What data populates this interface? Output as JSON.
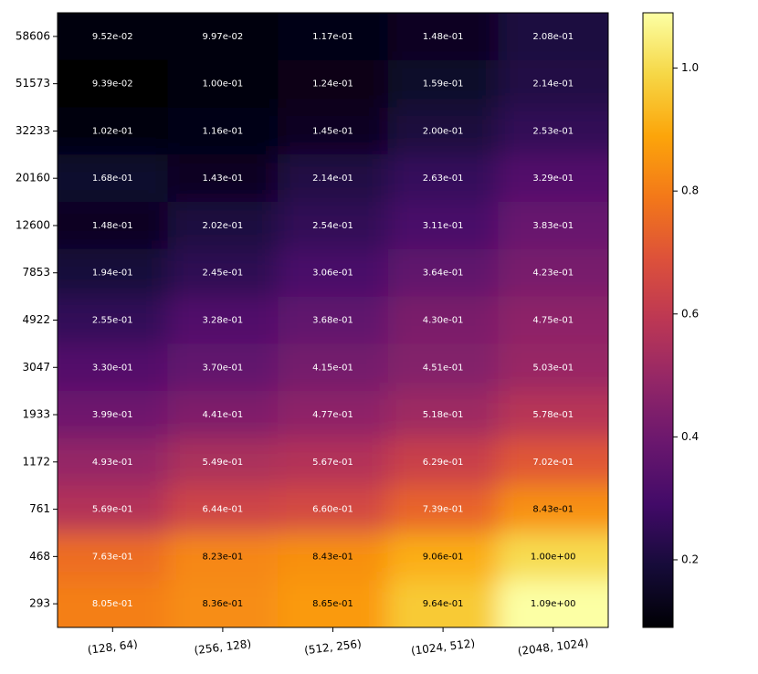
{
  "chart_data": {
    "type": "heatmap",
    "title": "",
    "xlabel": "",
    "ylabel": "",
    "x_categories": [
      "(128, 64)",
      "(256, 128)",
      "(512, 256)",
      "(1024, 512)",
      "(2048, 1024)"
    ],
    "y_categories": [
      "58606",
      "51573",
      "32233",
      "20160",
      "12600",
      "7853",
      "4922",
      "3047",
      "1933",
      "1172",
      "761",
      "468",
      "293"
    ],
    "values": [
      [
        0.0952,
        0.0997,
        0.117,
        0.148,
        0.208
      ],
      [
        0.0939,
        0.1,
        0.124,
        0.159,
        0.214
      ],
      [
        0.102,
        0.116,
        0.145,
        0.2,
        0.253
      ],
      [
        0.168,
        0.143,
        0.214,
        0.263,
        0.329
      ],
      [
        0.148,
        0.202,
        0.254,
        0.311,
        0.383
      ],
      [
        0.194,
        0.245,
        0.306,
        0.364,
        0.423
      ],
      [
        0.255,
        0.328,
        0.368,
        0.43,
        0.475
      ],
      [
        0.33,
        0.37,
        0.415,
        0.451,
        0.503
      ],
      [
        0.399,
        0.441,
        0.477,
        0.518,
        0.578
      ],
      [
        0.493,
        0.549,
        0.567,
        0.629,
        0.702
      ],
      [
        0.569,
        0.644,
        0.66,
        0.739,
        0.843
      ],
      [
        0.763,
        0.823,
        0.843,
        0.906,
        1.0
      ],
      [
        0.805,
        0.836,
        0.865,
        0.964,
        1.09
      ]
    ],
    "cell_labels": [
      [
        "9.52e-02",
        "9.97e-02",
        "1.17e-01",
        "1.48e-01",
        "2.08e-01"
      ],
      [
        "9.39e-02",
        "1.00e-01",
        "1.24e-01",
        "1.59e-01",
        "2.14e-01"
      ],
      [
        "1.02e-01",
        "1.16e-01",
        "1.45e-01",
        "2.00e-01",
        "2.53e-01"
      ],
      [
        "1.68e-01",
        "1.43e-01",
        "2.14e-01",
        "2.63e-01",
        "3.29e-01"
      ],
      [
        "1.48e-01",
        "2.02e-01",
        "2.54e-01",
        "3.11e-01",
        "3.83e-01"
      ],
      [
        "1.94e-01",
        "2.45e-01",
        "3.06e-01",
        "3.64e-01",
        "4.23e-01"
      ],
      [
        "2.55e-01",
        "3.28e-01",
        "3.68e-01",
        "4.30e-01",
        "4.75e-01"
      ],
      [
        "3.30e-01",
        "3.70e-01",
        "4.15e-01",
        "4.51e-01",
        "5.03e-01"
      ],
      [
        "3.99e-01",
        "4.41e-01",
        "4.77e-01",
        "5.18e-01",
        "5.78e-01"
      ],
      [
        "4.93e-01",
        "5.49e-01",
        "5.67e-01",
        "6.29e-01",
        "7.02e-01"
      ],
      [
        "5.69e-01",
        "6.44e-01",
        "6.60e-01",
        "7.39e-01",
        "8.43e-01"
      ],
      [
        "7.63e-01",
        "8.23e-01",
        "8.43e-01",
        "9.06e-01",
        "1.00e+00"
      ],
      [
        "8.05e-01",
        "8.36e-01",
        "8.65e-01",
        "9.64e-01",
        "1.09e+00"
      ]
    ],
    "colormap": "inferno",
    "value_range": [
      0.09,
      1.09
    ],
    "colorbar_ticks": [
      "0.2",
      "0.4",
      "0.6",
      "0.8",
      "1.0"
    ],
    "interpolation": "smooth",
    "grid": false
  }
}
